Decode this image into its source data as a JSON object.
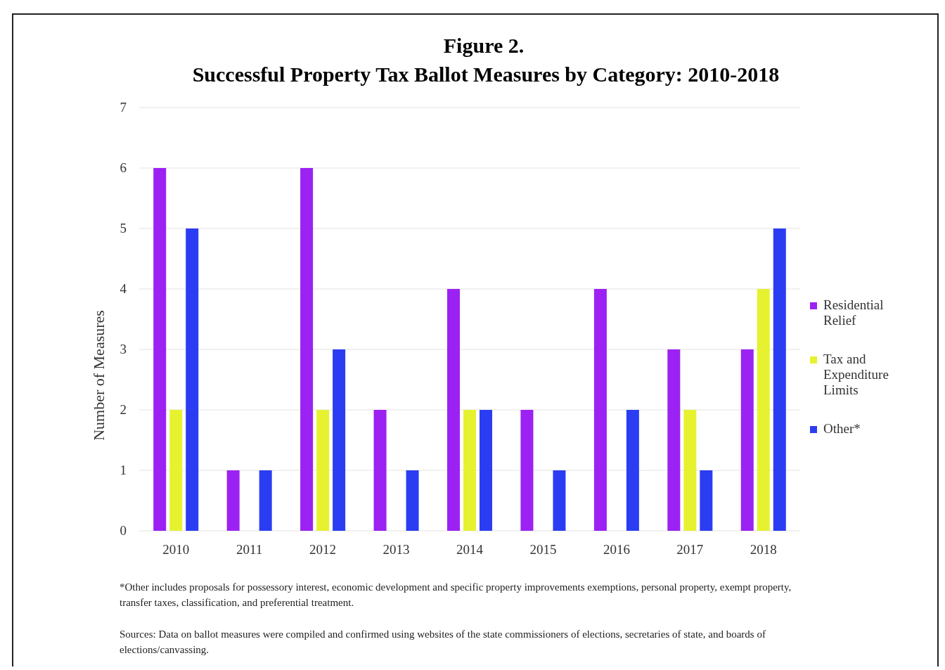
{
  "chart_data": {
    "type": "bar",
    "title": "Figure 2.",
    "subtitle": "Successful Property Tax Ballot Measures by Category: 2010-2018",
    "ylabel": "Number  of Measures",
    "categories": [
      "2010",
      "2011",
      "2012",
      "2013",
      "2014",
      "2015",
      "2016",
      "2017",
      "2018"
    ],
    "series": [
      {
        "name": "Residential Relief",
        "color": "#9b22f2",
        "values": [
          6,
          1,
          6,
          2,
          4,
          2,
          4,
          3,
          3
        ]
      },
      {
        "name": "Tax and Expenditure Limits",
        "color": "#e6f230",
        "values": [
          2,
          0,
          2,
          0,
          2,
          0,
          0,
          2,
          4
        ]
      },
      {
        "name": "Other*",
        "color": "#2b3df2",
        "values": [
          5,
          1,
          3,
          1,
          2,
          1,
          2,
          1,
          5
        ]
      }
    ],
    "ylim": [
      0,
      7
    ],
    "yticks": [
      0,
      1,
      2,
      3,
      4,
      5,
      6,
      7
    ],
    "grid": "y",
    "legend": "right",
    "annotations": [
      "*Other includes proposals for possessory interest, economic development and specific property improvements exemptions, personal property, exempt property, transfer taxes, classification, and preferential treatment.",
      "Sources: Data on ballot measures were compiled and confirmed using websites of the state commissioners of elections, secretaries of state, and boards of elections/canvassing."
    ]
  }
}
